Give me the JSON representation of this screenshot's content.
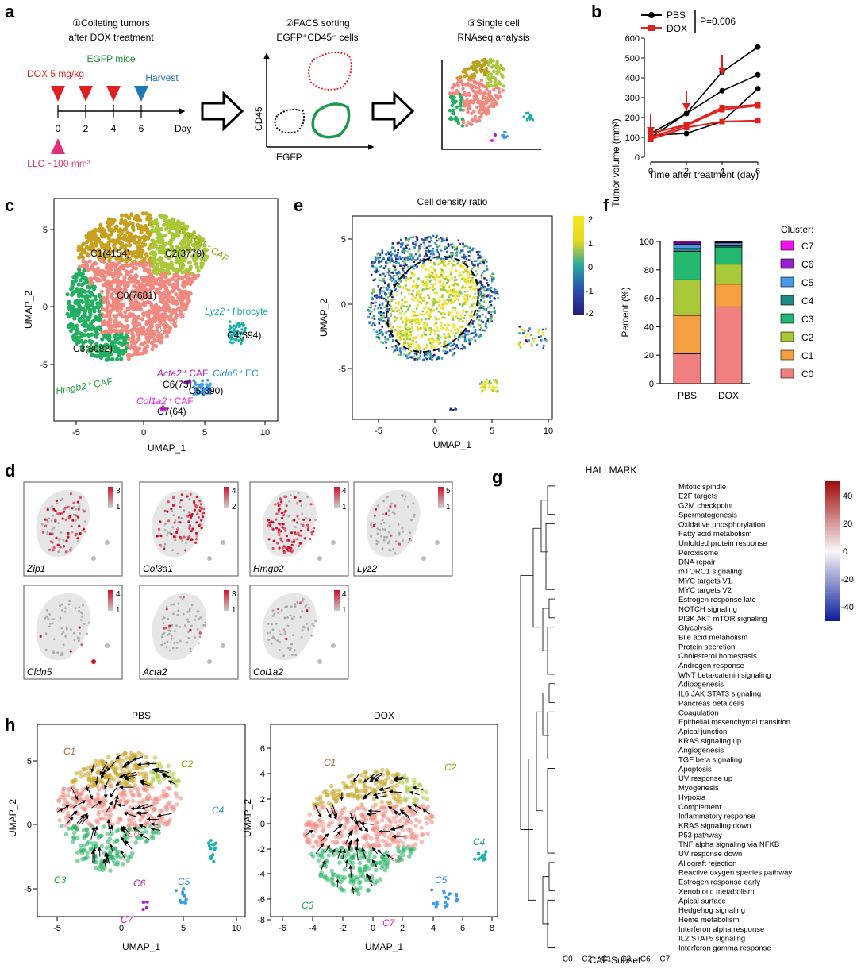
{
  "panel_labels": {
    "a": "a",
    "b": "b",
    "c": "c",
    "d": "d",
    "e": "e",
    "f": "f",
    "g": "g",
    "h": "h"
  },
  "a": {
    "step1_line1": "①Colleting tumors",
    "step1_line2": "after DOX treatment",
    "step2_line1": "②FACS sorting",
    "step2_line2": "EGFP⁺CD45⁻ cells",
    "step3_line1": "③Single cell",
    "step3_line2": "RNAseq analysis",
    "egfp_mice": "EGFP mice",
    "dox": "DOX 5 mg/kg",
    "harvest": "Harvest",
    "day": "Day",
    "days": [
      "0",
      "2",
      "4",
      "6"
    ],
    "llc": "LLC ~100 mm³",
    "cd45": "CD45",
    "egfp": "EGFP",
    "colors": {
      "green": "#1a8a3c",
      "red": "#e02020",
      "blue": "#1f77b4",
      "pink": "#e0307a"
    }
  },
  "b": {
    "chart_data": {
      "type": "line",
      "x": [
        0,
        2,
        4,
        6
      ],
      "series": [
        {
          "name": "PBS",
          "color": "#000000",
          "mice": [
            [
              120,
              220,
              430,
              555
            ],
            [
              100,
              220,
              335,
              415
            ],
            [
              110,
              120,
              180,
              345
            ]
          ]
        },
        {
          "name": "DOX",
          "color": "#e0201c",
          "mice": [
            [
              120,
              165,
              250,
              265
            ],
            [
              100,
              160,
              240,
              260
            ],
            [
              90,
              150,
              180,
              185
            ]
          ]
        }
      ],
      "xlabel": "Time after treatment (day)",
      "ylabel": "Tumor volume (mm³)",
      "xlim": [
        0,
        6
      ],
      "ylim": [
        0,
        600
      ],
      "yticks": [
        "0",
        "100",
        "200",
        "300",
        "400",
        "500",
        "600"
      ],
      "xticks": [
        "0",
        "2",
        "4",
        "6"
      ],
      "pvalue": "P=0.006",
      "arrows_at_days": [
        0,
        2,
        4
      ]
    }
  },
  "c": {
    "xlabel": "UMAP_1",
    "ylabel": "UMAP_2",
    "xticks": [
      "-5",
      "0",
      "5",
      "10"
    ],
    "yticks": [
      "5",
      "0",
      "-5"
    ],
    "clusters": [
      {
        "label": "C1(4154)"
      },
      {
        "label": "C2(3779)"
      },
      {
        "label": "C0(7681)"
      },
      {
        "label": "C3(3082)"
      },
      {
        "label": "C4(394)"
      },
      {
        "label": "C6(73)"
      },
      {
        "label": "C5(390)"
      },
      {
        "label": "C7(64)"
      }
    ],
    "annotations": [
      {
        "gene": "Col3a1⁺",
        "suffix": " CAF",
        "color": "#8aa60a"
      },
      {
        "gene": "Zip1⁺",
        "suffix": " CAF",
        "color": "#e8908c"
      },
      {
        "gene": "Lyz2⁺",
        "suffix": " fibrocyte",
        "color": "#1fa8a8"
      },
      {
        "gene": "Hmgb2⁺",
        "suffix": " CAF",
        "color": "#20a040"
      },
      {
        "gene": "Acta2⁺",
        "suffix": " CAF",
        "color": "#b020b0"
      },
      {
        "gene": "Cldn5⁺",
        "suffix": " EC",
        "color": "#3090e0"
      },
      {
        "gene": "Col1a2⁺",
        "suffix": " CAF",
        "color": "#e020e0"
      }
    ]
  },
  "e": {
    "title": "Cell density ratio",
    "xlabel": "UMAP_1",
    "ylabel": "UMAP_2",
    "xticks": [
      "-5",
      "0",
      "5",
      "10"
    ],
    "yticks": [
      "5",
      "0",
      "-5"
    ],
    "cbar": [
      "2",
      "1",
      "0",
      "-1",
      "-2"
    ]
  },
  "f": {
    "chart_data": {
      "type": "bar",
      "stacked": true,
      "categories": [
        "PBS",
        "DOX"
      ],
      "series": [
        {
          "name": "C0",
          "color": "#f08080",
          "values": [
            21,
            54
          ]
        },
        {
          "name": "C1",
          "color": "#f5a040",
          "values": [
            27,
            16
          ]
        },
        {
          "name": "C2",
          "color": "#a8c838",
          "values": [
            25,
            14
          ]
        },
        {
          "name": "C3",
          "color": "#22b870",
          "values": [
            20,
            12
          ]
        },
        {
          "name": "C4",
          "color": "#1e8a88",
          "values": [
            2,
            1
          ]
        },
        {
          "name": "C5",
          "color": "#4a9ae8",
          "values": [
            3,
            2
          ]
        },
        {
          "name": "C6",
          "color": "#9a1fd0",
          "values": [
            1,
            0.5
          ]
        },
        {
          "name": "C7",
          "color": "#f010f0",
          "values": [
            1,
            0.5
          ]
        }
      ],
      "ylabel": "Percent (%)",
      "ylim": [
        0,
        100
      ],
      "yticks": [
        "0",
        "20",
        "40",
        "60",
        "80",
        "100"
      ],
      "legend_title": "Cluster:",
      "legend_order": [
        "C7",
        "C6",
        "C5",
        "C4",
        "C3",
        "C2",
        "C1",
        "C0"
      ]
    }
  },
  "d": {
    "genes": [
      {
        "name": "Zip1",
        "max": "3",
        "min": "1"
      },
      {
        "name": "Col3a1",
        "max": "4",
        "min": "2"
      },
      {
        "name": "Hmgb2",
        "max": "4",
        "min": "1"
      },
      {
        "name": "Lyz2",
        "max": "5",
        "min": "1"
      },
      {
        "name": "Cldn5",
        "max": "4",
        "min": "1"
      },
      {
        "name": "Acta2",
        "max": "3",
        "min": "1"
      },
      {
        "name": "Col1a2",
        "max": "4",
        "min": "1"
      }
    ]
  },
  "g": {
    "chart_data": {
      "type": "heatmap",
      "title": "HALLMARK",
      "xlabel": "CAF Subset",
      "columns": [
        "C0",
        "C2",
        "C1",
        "C3",
        "C6",
        "C7"
      ],
      "rows": [
        "Mitotic spindle",
        "E2F targets",
        "G2M checkpoint",
        "Spermatogenesis",
        "Oxidative phosphorylation",
        "Fatty acid metabolism",
        "Unfolded protein response",
        "Peroxisome",
        "DNA repair",
        "mTORC1 signaling",
        "MYC targets V1",
        "MYC targets V2",
        "Estrogen response late",
        "NOTCH signaling",
        "PI3K AKT mTOR signaling",
        "Glycolysis",
        "Bile acid metabolism",
        "Protein secretion",
        "Cholesterol homestasis",
        "Androgen response",
        "WNT beta-catenin signaling",
        "Adipogenesis",
        "IL6 JAK STAT3 signaling",
        "Pancreas beta cells",
        "Coagulation",
        "Epithelial mesenchymal transition",
        "Apical junction",
        "KRAS signaling up",
        "Angiogenesis",
        "TGF beta signaling",
        "Apoptosis",
        "UV response up",
        "Myogenesis",
        "Hypoxia",
        "Complement",
        "Inflammatory response",
        "KRAS signaling down",
        "P53 pathway",
        "TNF alpha signaling via NFKB",
        "UV response down",
        "Allograft rejection",
        "Reactive oxygen species pathway",
        "Estrogen response early",
        "Xenobiotic metabolism",
        "Apical surface",
        "Hedgehog signaling",
        "Heme metabolism",
        "Interferon alpha response",
        "IL2 STAT5 signaling",
        "Interferon gamma response"
      ],
      "values": [
        [
          -15,
          -45,
          -35,
          45,
          -5,
          -5
        ],
        [
          -20,
          -48,
          -30,
          48,
          -10,
          -5
        ],
        [
          -20,
          -45,
          -30,
          48,
          -8,
          -5
        ],
        [
          -15,
          -30,
          -10,
          42,
          5,
          -5
        ],
        [
          -25,
          -20,
          30,
          40,
          -10,
          -5
        ],
        [
          -20,
          -15,
          25,
          40,
          -5,
          -5
        ],
        [
          -25,
          -10,
          25,
          40,
          -5,
          5
        ],
        [
          -30,
          -15,
          30,
          40,
          -8,
          8
        ],
        [
          -30,
          -20,
          25,
          45,
          -5,
          -5
        ],
        [
          -30,
          -20,
          25,
          45,
          -8,
          -5
        ],
        [
          -35,
          -30,
          30,
          48,
          -10,
          -5
        ],
        [
          -35,
          -25,
          25,
          48,
          -10,
          -5
        ],
        [
          -10,
          5,
          10,
          15,
          -5,
          5
        ],
        [
          -10,
          10,
          -5,
          15,
          5,
          -5
        ],
        [
          -15,
          -5,
          10,
          20,
          -5,
          5
        ],
        [
          -20,
          5,
          15,
          30,
          -5,
          5
        ],
        [
          -10,
          10,
          15,
          15,
          -5,
          5
        ],
        [
          -20,
          5,
          20,
          15,
          -10,
          -5
        ],
        [
          -25,
          10,
          25,
          20,
          -10,
          -5
        ],
        [
          -20,
          5,
          20,
          15,
          -5,
          5
        ],
        [
          -20,
          5,
          10,
          20,
          -10,
          -5
        ],
        [
          40,
          -10,
          -25,
          -45,
          25,
          5
        ],
        [
          38,
          10,
          -30,
          -48,
          20,
          -5
        ],
        [
          40,
          -5,
          -20,
          -40,
          15,
          5
        ],
        [
          35,
          40,
          -15,
          -48,
          15,
          5
        ],
        [
          30,
          40,
          -10,
          -45,
          10,
          5
        ],
        [
          25,
          30,
          -10,
          -40,
          10,
          -5
        ],
        [
          30,
          40,
          -5,
          -45,
          15,
          5
        ],
        [
          25,
          45,
          -15,
          -45,
          10,
          5
        ],
        [
          20,
          40,
          -10,
          -40,
          15,
          5
        ],
        [
          15,
          40,
          5,
          -45,
          20,
          5
        ],
        [
          10,
          38,
          10,
          -40,
          15,
          5
        ],
        [
          10,
          45,
          10,
          -45,
          5,
          5
        ],
        [
          5,
          48,
          10,
          -48,
          10,
          5
        ],
        [
          10,
          45,
          5,
          -48,
          15,
          5
        ],
        [
          10,
          40,
          5,
          -45,
          15,
          5
        ],
        [
          -10,
          30,
          -10,
          -40,
          25,
          -5
        ],
        [
          5,
          45,
          10,
          -48,
          15,
          5
        ],
        [
          10,
          45,
          5,
          -48,
          20,
          5
        ],
        [
          -10,
          35,
          10,
          -45,
          15,
          5
        ],
        [
          -15,
          15,
          30,
          -15,
          10,
          -5
        ],
        [
          -20,
          15,
          25,
          -10,
          5,
          5
        ],
        [
          -15,
          10,
          20,
          -5,
          5,
          5
        ],
        [
          -20,
          10,
          35,
          -10,
          5,
          -5
        ],
        [
          -30,
          20,
          20,
          -25,
          35,
          15
        ],
        [
          -30,
          15,
          15,
          -20,
          30,
          10
        ],
        [
          -35,
          25,
          25,
          -15,
          20,
          10
        ],
        [
          -30,
          20,
          5,
          -30,
          25,
          15
        ],
        [
          -25,
          20,
          10,
          -30,
          20,
          10
        ],
        [
          -30,
          25,
          5,
          -35,
          15,
          10
        ]
      ],
      "cbar": [
        "40",
        "20",
        "0",
        "-20",
        "-40"
      ],
      "range": [
        -48,
        48
      ]
    }
  },
  "h": {
    "pbs": {
      "title": "PBS",
      "xlabel": "UMAP_1",
      "ylabel": "UMAP_2",
      "xticks": [
        "-5",
        "0",
        "5",
        "10"
      ],
      "yticks": [
        "5",
        "0",
        "-5"
      ],
      "labels": [
        "C1",
        "C2",
        "C0",
        "C3",
        "C4",
        "C5",
        "C6",
        "C7"
      ]
    },
    "dox": {
      "title": "DOX",
      "xlabel": "UMAP_1",
      "ylabel": "UMAP_2",
      "xticks": [
        "-6",
        "-4",
        "-2",
        "0",
        "2",
        "4",
        "6",
        "8"
      ],
      "yticks": [
        "6",
        "4",
        "2",
        "0",
        "-2",
        "-4",
        "-6",
        "-8"
      ],
      "labels": [
        "C1",
        "C2",
        "C0",
        "C3",
        "C4",
        "C5",
        "C7"
      ]
    }
  }
}
